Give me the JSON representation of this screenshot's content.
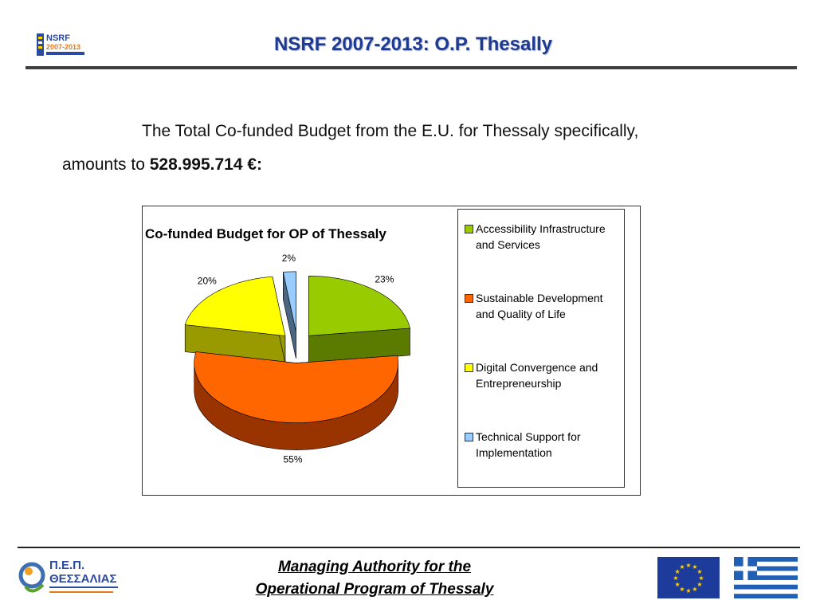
{
  "header": {
    "title": "NSRF 2007-2013: O.P. Thesally",
    "logo": {
      "icon": "nsrf-logo-icon",
      "line1": "NSRF",
      "line2": "2007-2013"
    }
  },
  "intro": {
    "line1": "The Total Co-funded Budget from the E.U. for Thessaly specifically,",
    "line2_prefix": "amounts to ",
    "amount": "528.995.714 €:"
  },
  "chart_data": {
    "type": "pie",
    "title": "Co-funded Budget for OP of Thessaly",
    "categories": [
      "Accessibility Infrastructure and Services",
      "Sustainable Development and Quality of Life",
      "Digital Convergence and Entrepreneurship",
      "Technical Support for Implementation"
    ],
    "values": [
      23,
      55,
      20,
      2
    ],
    "data_labels": [
      "23%",
      "55%",
      "20%",
      "2%"
    ],
    "colors": [
      "#99cc00",
      "#ff6600",
      "#ffff00",
      "#99ccff"
    ],
    "side_colors": [
      "#5b7a00",
      "#993300",
      "#999900",
      "#4a6680"
    ],
    "legend_position": "right",
    "style": "3d-exploded"
  },
  "legend": {
    "items": [
      {
        "label": "Accessibility Infrastructure and Services",
        "color": "#99cc00"
      },
      {
        "label": "Sustainable Development and Quality of Life",
        "color": "#ff6600"
      },
      {
        "label": "Digital Convergence and Entrepreneurship",
        "color": "#ffff00"
      },
      {
        "label": "Technical Support for Implementation",
        "color": "#99ccff"
      }
    ]
  },
  "footer": {
    "line1": "Managing Authority for the",
    "line2": "Operational Program of Thessaly",
    "pep_logo": {
      "icon": "pep-thessaly-logo-icon",
      "line1": "Π.Ε.Π.",
      "line2": "ΘΕΣΣΑΛΙΑΣ"
    },
    "eu_flag": "eu-flag-icon",
    "greek_flag": "greek-flag-icon"
  }
}
